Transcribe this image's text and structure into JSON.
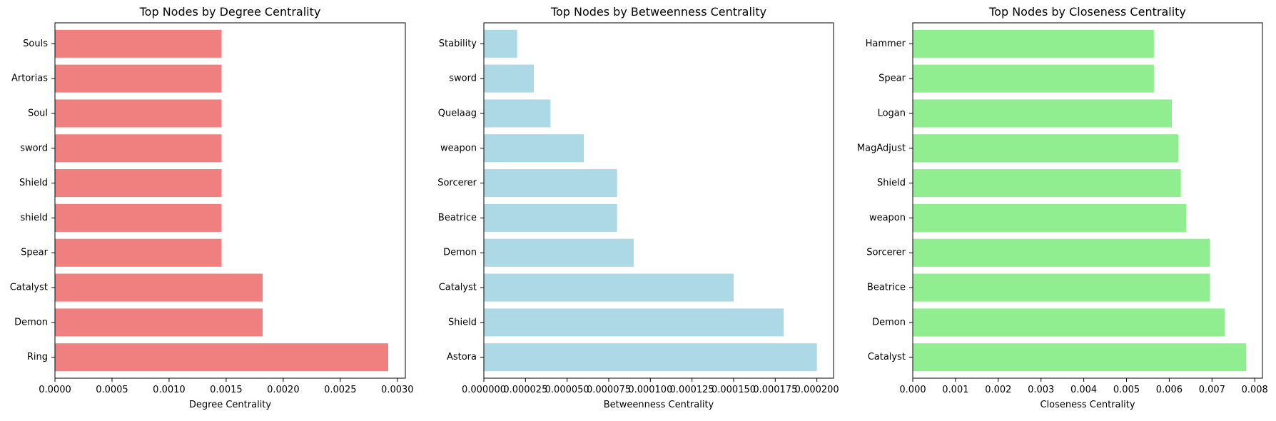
{
  "chart_data": [
    {
      "type": "bar",
      "orientation": "horizontal",
      "title": "Top Nodes by Degree Centrality",
      "xlabel": "Degree Centrality",
      "ylabel": "",
      "color": "#f08080",
      "xlim": [
        0,
        0.00307
      ],
      "xticks": [
        0,
        0.0005,
        0.001,
        0.0015,
        0.002,
        0.0025,
        0.003
      ],
      "xtick_labels": [
        "0.0000",
        "0.0005",
        "0.0010",
        "0.0015",
        "0.0020",
        "0.0025",
        "0.0030"
      ],
      "categories": [
        "Ring",
        "Demon",
        "Catalyst",
        "Spear",
        "shield",
        "Shield",
        "sword",
        "Soul",
        "Artorias",
        "Souls"
      ],
      "values": [
        0.00292,
        0.00182,
        0.00182,
        0.00146,
        0.00146,
        0.00146,
        0.00146,
        0.00146,
        0.00146,
        0.00146
      ]
    },
    {
      "type": "bar",
      "orientation": "horizontal",
      "title": "Top Nodes by Betweenness Centrality",
      "xlabel": "Betweenness Centrality",
      "ylabel": "",
      "color": "#add8e6",
      "xlim": [
        0,
        0.00021
      ],
      "xticks": [
        0,
        2.5e-05,
        5e-05,
        7.5e-05,
        0.0001,
        0.000125,
        0.00015,
        0.000175,
        0.0002
      ],
      "xtick_labels": [
        "0.000000",
        "0.000025",
        "0.000050",
        "0.000075",
        "0.000100",
        "0.000125",
        "0.000150",
        "0.000175",
        "0.000200"
      ],
      "categories": [
        "Astora",
        "Shield",
        "Catalyst",
        "Demon",
        "Beatrice",
        "Sorcerer",
        "weapon",
        "Quelaag",
        "sword",
        "Stability"
      ],
      "values": [
        0.0002,
        0.00018,
        0.00015,
        9e-05,
        8e-05,
        8e-05,
        6e-05,
        4e-05,
        3e-05,
        2e-05
      ]
    },
    {
      "type": "bar",
      "orientation": "horizontal",
      "title": "Top Nodes by Closeness Centrality",
      "xlabel": "Closeness Centrality",
      "ylabel": "",
      "color": "#90ee90",
      "xlim": [
        0,
        0.00818
      ],
      "xticks": [
        0,
        0.001,
        0.002,
        0.003,
        0.004,
        0.005,
        0.006,
        0.007,
        0.008
      ],
      "xtick_labels": [
        "0.000",
        "0.001",
        "0.002",
        "0.003",
        "0.004",
        "0.005",
        "0.006",
        "0.007",
        "0.008"
      ],
      "categories": [
        "Catalyst",
        "Demon",
        "Beatrice",
        "Sorcerer",
        "weapon",
        "Shield",
        "MagAdjust",
        "Logan",
        "Spear",
        "Hammer"
      ],
      "values": [
        0.0078,
        0.0073,
        0.00695,
        0.00695,
        0.0064,
        0.00627,
        0.00621,
        0.00606,
        0.00564,
        0.00564
      ]
    }
  ]
}
